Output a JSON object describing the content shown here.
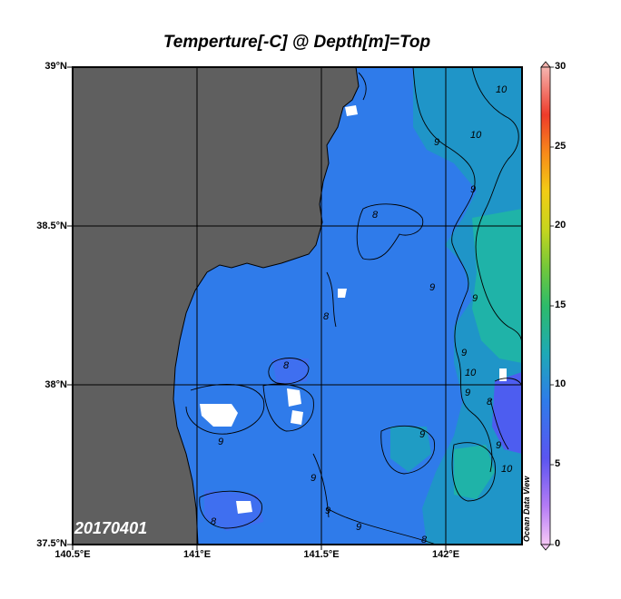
{
  "title": "Temperture[-C] @ Depth[m]=Top",
  "date_label": "20170401",
  "watermark": "Ocean Data View",
  "y_ticks": [
    "39°N",
    "38.5°N",
    "38°N",
    "37.5°N"
  ],
  "x_ticks": [
    "140.5°E",
    "141°E",
    "141.5°E",
    "142°E"
  ],
  "colorbar": {
    "ticks": [
      "30",
      "25",
      "20",
      "15",
      "10",
      "5",
      "0"
    ],
    "range": [
      0,
      30
    ]
  },
  "contour_labels": [
    "10",
    "9",
    "8",
    "9",
    "9",
    "8",
    "9",
    "10",
    "10",
    "9",
    "8",
    "9",
    "9",
    "10",
    "8",
    "8",
    "9",
    "9",
    "9",
    "9",
    "8",
    "9"
  ],
  "colors": {
    "land": "#5f5f5f",
    "water_main": "#2f7bea",
    "water_warm": "#1ea9b6",
    "water_cold": "#4d5df0"
  }
}
